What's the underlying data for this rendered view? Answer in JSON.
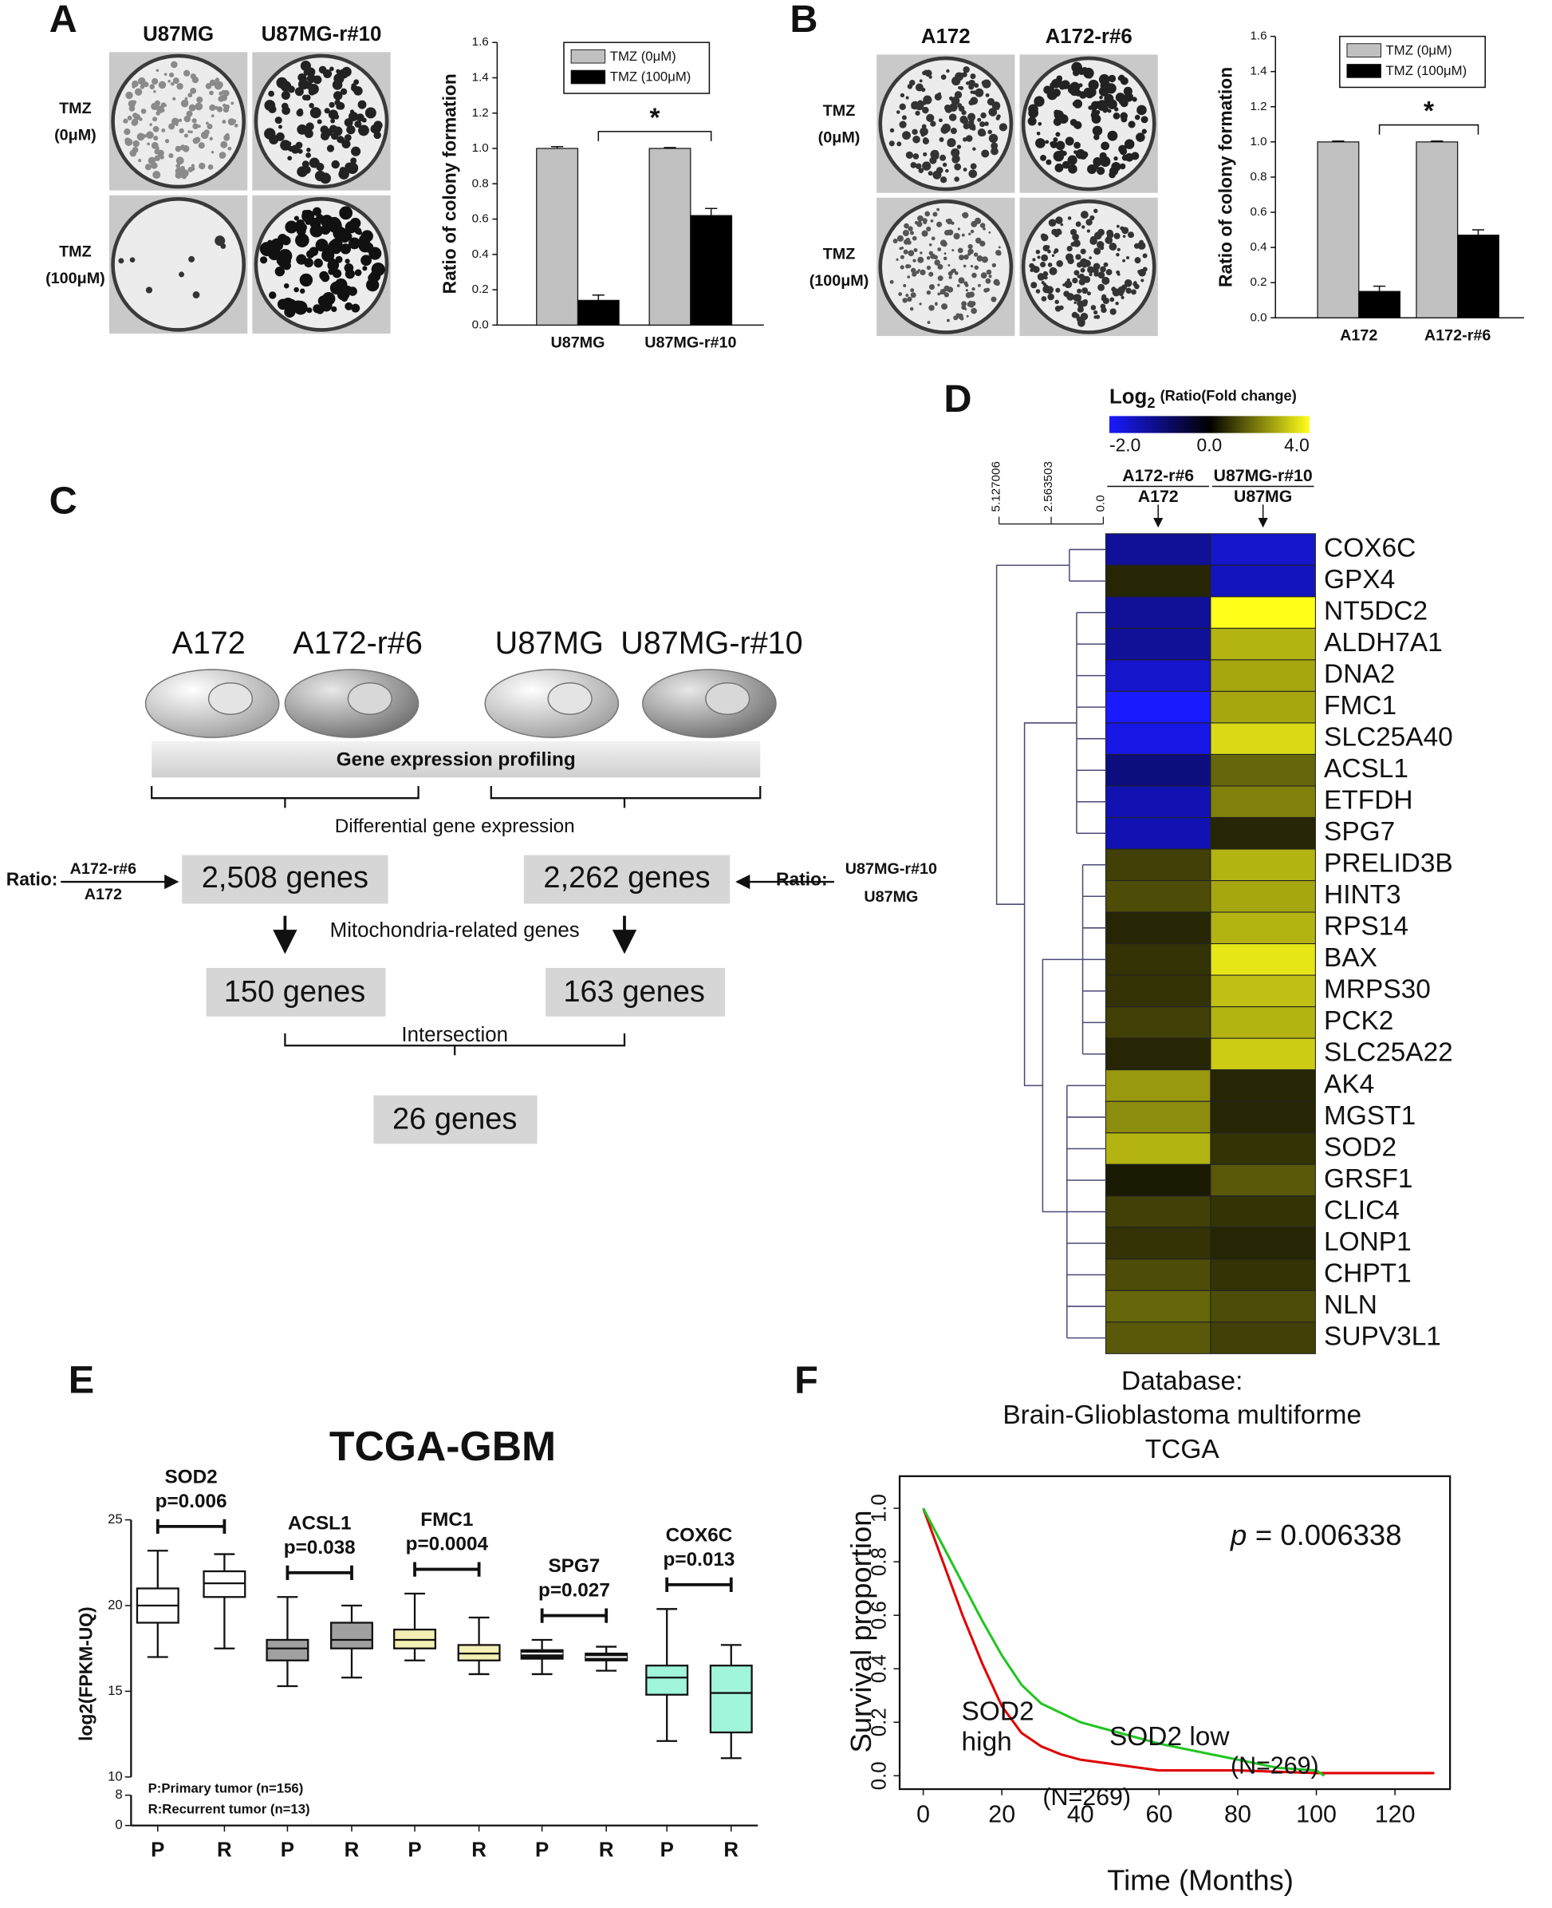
{
  "panel_labels": [
    "A",
    "B",
    "C",
    "D",
    "E",
    "F"
  ],
  "colony_plates": [
    {
      "columns": [
        "U87MG",
        "U87MG-r#10"
      ],
      "rows": [
        [
          "TMZ",
          "(0μM)"
        ],
        [
          "TMZ",
          "(100μM)"
        ]
      ]
    },
    {
      "columns": [
        "A172",
        "A172-r#6"
      ],
      "rows": [
        [
          "TMZ",
          "(0μM)"
        ],
        [
          "TMZ",
          "(100μM)"
        ]
      ]
    }
  ],
  "diagram": {
    "cells": [
      "A172",
      "A172-r#6",
      "U87MG",
      "U87MG-r#10"
    ],
    "profiling": "Gene expression profiling",
    "differential": "Differential gene expression",
    "ratio_left": {
      "prefix": "Ratio:",
      "numerator": "A172-r#6",
      "denominator": "A172"
    },
    "ratio_right": {
      "prefix": "Ratio:",
      "numerator": "U87MG-r#10",
      "denominator": "U87MG"
    },
    "degs": [
      "2,508 genes",
      "2,262 genes"
    ],
    "mito_label": "Mitochondria-related genes",
    "mito": [
      "150 genes",
      "163 genes"
    ],
    "intersection_label": "Intersection",
    "intersection": "26 genes"
  },
  "chart_data": [
    {
      "type": "bar",
      "ylabel": "Ratio of colony formation",
      "categories": [
        "U87MG",
        "U87MG-r#10"
      ],
      "series": [
        {
          "name": "TMZ (0μM)",
          "color": "#c0c0c0",
          "values": [
            1.0,
            1.0
          ],
          "errors": [
            0.01,
            0.005
          ]
        },
        {
          "name": "TMZ (100μM)",
          "color": "#000000",
          "values": [
            0.14,
            0.62
          ],
          "errors": [
            0.03,
            0.04
          ]
        }
      ],
      "ylim": [
        0,
        1.6
      ],
      "yticks": [
        {
          "value": 0,
          "label": "0.0"
        },
        {
          "value": 0.2,
          "label": "0.2"
        },
        {
          "value": 0.4,
          "label": "0.4"
        },
        {
          "value": 0.6,
          "label": "0.6"
        },
        {
          "value": 0.8,
          "label": "0.8"
        },
        {
          "value": 1.0,
          "label": "1.0"
        },
        {
          "value": 1.2,
          "label": "1.2"
        },
        {
          "value": 1.4,
          "label": "1.4"
        },
        {
          "value": 1.6,
          "label": "1.6"
        }
      ],
      "annotation": "*"
    },
    {
      "type": "bar",
      "ylabel": "Ratio of colony formation",
      "categories": [
        "A172",
        "A172-r#6"
      ],
      "series": [
        {
          "name": "TMZ (0μM)",
          "color": "#c0c0c0",
          "values": [
            1.0,
            1.0
          ],
          "errors": [
            0.005,
            0.005
          ]
        },
        {
          "name": "TMZ (100μM)",
          "color": "#000000",
          "values": [
            0.15,
            0.47
          ],
          "errors": [
            0.03,
            0.03
          ]
        }
      ],
      "ylim": [
        0,
        1.6
      ],
      "yticks": [
        {
          "value": 0,
          "label": "0.0"
        },
        {
          "value": 0.2,
          "label": "0.2"
        },
        {
          "value": 0.4,
          "label": "0.4"
        },
        {
          "value": 0.6,
          "label": "0.6"
        },
        {
          "value": 0.8,
          "label": "0.8"
        },
        {
          "value": 1.0,
          "label": "1.0"
        },
        {
          "value": 1.2,
          "label": "1.2"
        },
        {
          "value": 1.4,
          "label": "1.4"
        },
        {
          "value": 1.6,
          "label": "1.6"
        }
      ],
      "annotation": "*"
    },
    {
      "type": "heatmap",
      "title_parts": [
        "Log",
        "2",
        "(Ratio(Fold change)"
      ],
      "colorbar": {
        "ticks": [
          {
            "value": -2,
            "label": "-2.0"
          },
          {
            "value": 0,
            "label": "0.0"
          },
          {
            "value": 4,
            "label": "4.0"
          }
        ],
        "colors": [
          "#1a1aff",
          "#000000",
          "#ffff1a"
        ]
      },
      "dendrogram_ticks": [
        5.127006,
        2.563503,
        {
          "value": 0,
          "label": "0.0"
        }
      ],
      "rows": [
        "COX6C",
        "GPX4",
        "NT5DC2",
        "ALDH7A1",
        "DNA2",
        "FMC1",
        "SLC25A40",
        "ACSL1",
        "ETFDH",
        "SPG7",
        "PRELID3B",
        "HINT3",
        "RPS14",
        "BAX",
        "MRPS30",
        "PCK2",
        "SLC25A22",
        "AK4",
        "MGST1",
        "SOD2",
        "GRSF1",
        "CLIC4",
        "LONP1",
        "CHPT1",
        "NLN",
        "SUPV3L1"
      ],
      "columns": [
        {
          "numerator": "A172-r#6",
          "denominator": "A172",
          "values": [
            -1.2,
            0.6,
            -1.2,
            -1.2,
            -1.6,
            -2.0,
            -1.8,
            -1.0,
            -1.4,
            -1.4,
            1.0,
            1.2,
            0.6,
            0.8,
            0.8,
            1.0,
            0.6,
            2.4,
            2.2,
            2.8,
            0.4,
            1.0,
            0.8,
            1.2,
            1.6,
            1.4
          ]
        },
        {
          "numerator": "U87MG-r#10",
          "denominator": "U87MG",
          "values": [
            -1.6,
            -1.5,
            4.0,
            2.8,
            2.6,
            2.6,
            3.4,
            1.6,
            2.0,
            0.6,
            2.8,
            2.6,
            2.8,
            3.6,
            3.0,
            2.8,
            3.2,
            0.6,
            0.6,
            0.8,
            1.4,
            0.8,
            0.6,
            0.8,
            1.2,
            1.0
          ]
        }
      ]
    },
    {
      "type": "box",
      "title": "TCGA-GBM",
      "ylabel": "log2(FPKM-UQ)",
      "categories": [
        "P",
        "R"
      ],
      "ylim": [
        10,
        25
      ],
      "yticks": [
        10,
        15,
        20,
        25
      ],
      "lower_ylim": [
        0,
        8
      ],
      "lower_yticks": [
        0,
        8
      ],
      "legend": [
        "P:Primary tumor (n=156)",
        "R:Recurrent tumor (n=13)"
      ],
      "groups": [
        {
          "name": "SOD2",
          "p_label": "p=0.006",
          "color": "#ffffff",
          "boxes": [
            {
              "min": 17,
              "q1": 19,
              "median": 20,
              "q3": 21,
              "max": 23.2
            },
            {
              "min": 17.5,
              "q1": 20.5,
              "median": 21.3,
              "q3": 22,
              "max": 23
            }
          ]
        },
        {
          "name": "ACSL1",
          "p_label": "p=0.038",
          "color": "#a0a0a0",
          "boxes": [
            {
              "min": 15.3,
              "q1": 16.8,
              "median": 17.5,
              "q3": 18,
              "max": 20.5
            },
            {
              "min": 15.8,
              "q1": 17.5,
              "median": 18,
              "q3": 19,
              "max": 20
            }
          ]
        },
        {
          "name": "FMC1",
          "p_label": "p=0.0004",
          "color": "#f4efb4",
          "boxes": [
            {
              "min": 16.8,
              "q1": 17.5,
              "median": 18,
              "q3": 18.6,
              "max": 20.7
            },
            {
              "min": 16,
              "q1": 16.8,
              "median": 17.2,
              "q3": 17.7,
              "max": 19.3
            }
          ]
        },
        {
          "name": "SPG7",
          "p_label": "p=0.027",
          "color": "#111111",
          "boxes": [
            {
              "min": 16,
              "q1": 16.9,
              "median": 17.2,
              "q3": 17.4,
              "max": 18
            },
            {
              "min": 16.2,
              "q1": 16.8,
              "median": 17,
              "q3": 17.2,
              "max": 17.6
            }
          ]
        },
        {
          "name": "COX6C",
          "p_label": "p=0.013",
          "color": "#a0f5da",
          "boxes": [
            {
              "min": 12.1,
              "q1": 14.8,
              "median": 15.8,
              "q3": 16.5,
              "max": 19.8
            },
            {
              "min": 11.1,
              "q1": 12.6,
              "median": 14.9,
              "q3": 16.5,
              "max": 17.7
            }
          ]
        }
      ]
    },
    {
      "type": "survival",
      "title": [
        "Database:",
        "Brain-Glioblastoma multiforme",
        "TCGA"
      ],
      "xlabel": "Time (Months)",
      "ylabel": "Survival proportion",
      "p_label": {
        "symbol": "p",
        "text": "= 0.006338"
      },
      "xlim": [
        -6,
        134
      ],
      "xticks": [
        0,
        20,
        40,
        60,
        80,
        100,
        120
      ],
      "ylim": [
        -0.05,
        1.12
      ],
      "yticks": [
        {
          "value": 0,
          "label": "0.0"
        },
        {
          "value": 0.2,
          "label": "0.2"
        },
        {
          "value": 0.4,
          "label": "0.4"
        },
        {
          "value": 0.6,
          "label": "0.6"
        },
        {
          "value": 0.8,
          "label": "0.8"
        },
        {
          "value": 1.0,
          "label": "1.0"
        }
      ],
      "series": [
        {
          "name": "SOD2 high",
          "n_label": "(N=269)",
          "color": "#e00000",
          "x": [
            0,
            5,
            10,
            15,
            20,
            25,
            30,
            35,
            40,
            50,
            60,
            80,
            100,
            130
          ],
          "values": [
            1,
            0.8,
            0.6,
            0.42,
            0.26,
            0.16,
            0.11,
            0.08,
            0.06,
            0.04,
            0.02,
            0.02,
            0.01,
            0.01
          ]
        },
        {
          "name": "SOD2 low",
          "n_label": "(N=269)",
          "color": "#22c422",
          "x": [
            0,
            5,
            10,
            15,
            20,
            25,
            30,
            40,
            50,
            60,
            70,
            80,
            90,
            100,
            102
          ],
          "values": [
            1,
            0.86,
            0.72,
            0.58,
            0.45,
            0.34,
            0.27,
            0.2,
            0.16,
            0.12,
            0.09,
            0.06,
            0.03,
            0.02,
            0
          ]
        }
      ]
    }
  ]
}
